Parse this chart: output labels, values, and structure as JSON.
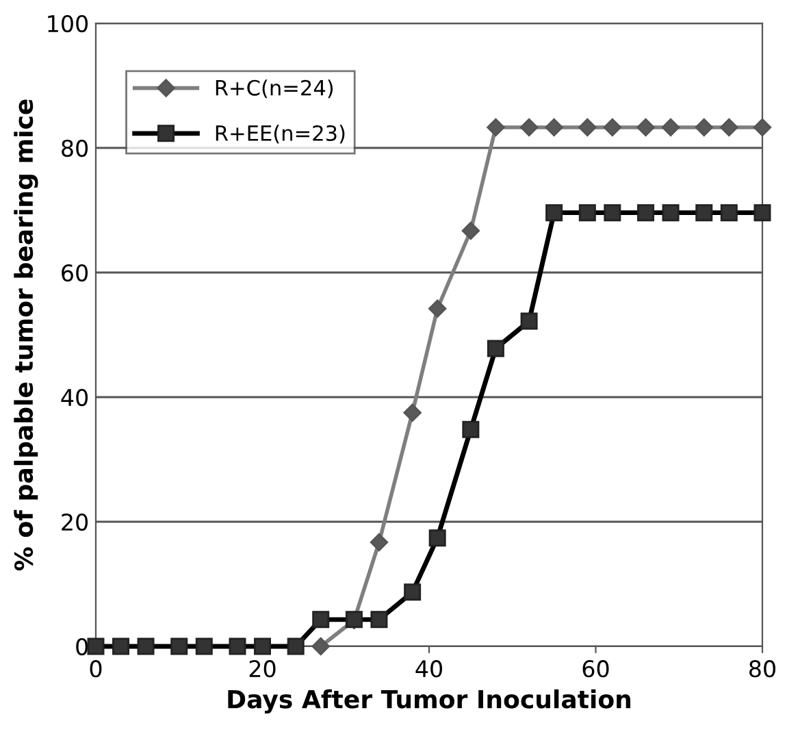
{
  "chart_data": {
    "type": "line",
    "xlabel": "Days After Tumor Inoculation",
    "ylabel": "% of palpable tumor bearing mice",
    "x": [
      0,
      3,
      6,
      10,
      13,
      17,
      20,
      24,
      27,
      31,
      34,
      38,
      41,
      45,
      48,
      52,
      55,
      59,
      62,
      66,
      69,
      73,
      76,
      80
    ],
    "series": [
      {
        "name": "R+C(n=24)",
        "color": "#7f7f7f",
        "marker": "diamond",
        "values": [
          null,
          null,
          null,
          null,
          null,
          null,
          null,
          null,
          0,
          4.2,
          16.7,
          37.5,
          54.2,
          66.7,
          83.3,
          83.3,
          83.3,
          83.3,
          83.3,
          83.3,
          83.3,
          83.3,
          83.3,
          83.3
        ]
      },
      {
        "name": "R+EE(n=23)",
        "color": "#000000",
        "marker": "square",
        "values": [
          0,
          0,
          0,
          0,
          0,
          0,
          0,
          0,
          4.3,
          4.3,
          4.3,
          8.7,
          17.4,
          34.8,
          47.8,
          52.2,
          69.6,
          69.6,
          69.6,
          69.6,
          69.6,
          69.6,
          69.6,
          69.6
        ]
      }
    ],
    "xlim": [
      0,
      80
    ],
    "xticks": [
      0,
      20,
      40,
      60,
      80
    ],
    "ylim": [
      0,
      100
    ],
    "yticks": [
      0,
      20,
      40,
      60,
      80,
      100
    ],
    "grid": "y",
    "legend": "top left",
    "line_style": "solid"
  }
}
